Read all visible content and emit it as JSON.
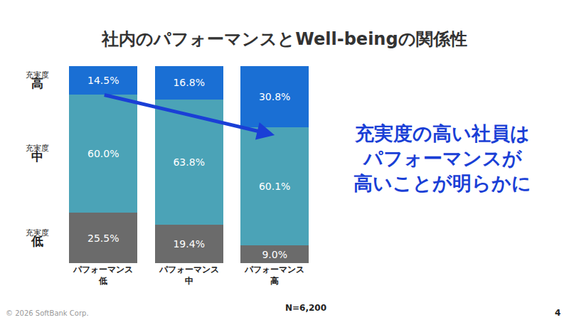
{
  "chart_data": {
    "type": "bar",
    "stacked": true,
    "title": "社内のパフォーマンスとWell-beingの関係性",
    "categories": [
      "パフォーマンス\n低",
      "パフォーマンス\n中",
      "パフォーマンス\n高"
    ],
    "series": [
      {
        "name": "充実度\n低",
        "color": "#6b6b6b",
        "values": [
          25.5,
          19.4,
          9.0
        ],
        "value_labels": [
          "25.5%",
          "19.4%",
          "9.0%"
        ]
      },
      {
        "name": "充実度\n中",
        "color": "#4ba3b7",
        "values": [
          60.0,
          63.8,
          60.1
        ],
        "value_labels": [
          "60.0%",
          "63.8%",
          "60.1%"
        ]
      },
      {
        "name": "充実度\n高",
        "color": "#1a6fd4",
        "values": [
          14.5,
          16.8,
          30.8
        ],
        "value_labels": [
          "14.5%",
          "16.8%",
          "30.8%"
        ]
      }
    ],
    "ylim": [
      0,
      100
    ],
    "tick_labels": "x",
    "data_labels": true,
    "annotations": [
      "充実度の高い社員は\nパフォーマンスが\n高いことが明らかに",
      "N=6,200",
      "© 2026 SoftBank Corp.",
      "4"
    ]
  }
}
